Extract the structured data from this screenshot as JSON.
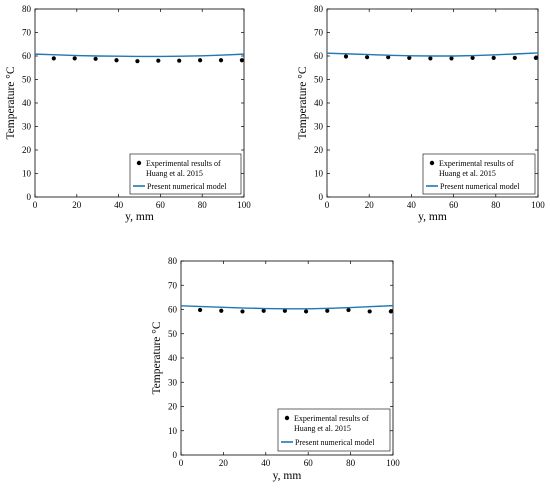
{
  "colors": {
    "model_line": "#1f77b4",
    "experimental_marker": "#000000",
    "axes": "#000000",
    "background": "#ffffff"
  },
  "chart_data": [
    {
      "type": "scatter",
      "xlabel": "y, mm",
      "ylabel": "Temperature °C",
      "xlim": [
        0,
        100
      ],
      "ylim": [
        0,
        80
      ],
      "xticks": [
        0,
        20,
        40,
        60,
        80,
        100
      ],
      "yticks": [
        0,
        10,
        20,
        30,
        40,
        50,
        60,
        70,
        80
      ],
      "grid": false,
      "legend_position": "bottom-right",
      "series": [
        {
          "name": "Experimental results of Huang et al. 2015",
          "legend_lines": [
            "Experimental results of",
            "Huang et al. 2015"
          ],
          "kind": "marker",
          "x": [
            9,
            19,
            29,
            39,
            49,
            59,
            69,
            79,
            89,
            99
          ],
          "y": [
            59,
            59,
            58.8,
            58.2,
            57.8,
            58,
            58,
            58.2,
            58.2,
            58.2
          ]
        },
        {
          "name": "Present numerical model",
          "legend_lines": [
            "Present numerical model"
          ],
          "kind": "line",
          "x": [
            0,
            10,
            20,
            30,
            40,
            50,
            60,
            70,
            80,
            90,
            100
          ],
          "y": [
            60.8,
            60.5,
            60.2,
            60.0,
            59.9,
            59.8,
            59.8,
            59.9,
            60.1,
            60.4,
            60.8
          ]
        }
      ]
    },
    {
      "type": "scatter",
      "xlabel": "y, mm",
      "ylabel": "Temperature °C",
      "xlim": [
        0,
        100
      ],
      "ylim": [
        0,
        80
      ],
      "xticks": [
        0,
        20,
        40,
        60,
        80,
        100
      ],
      "yticks": [
        0,
        10,
        20,
        30,
        40,
        50,
        60,
        70,
        80
      ],
      "grid": false,
      "legend_position": "bottom-right",
      "series": [
        {
          "name": "Experimental results of Huang et al. 2015",
          "legend_lines": [
            "Experimental results of",
            "Huang et al. 2015"
          ],
          "kind": "marker",
          "x": [
            9,
            19,
            29,
            39,
            49,
            59,
            69,
            79,
            89,
            99
          ],
          "y": [
            59.8,
            59.5,
            59.5,
            59.2,
            59,
            59,
            59.2,
            59.2,
            59.2,
            59.2
          ]
        },
        {
          "name": "Present numerical model",
          "legend_lines": [
            "Present numerical model"
          ],
          "kind": "line",
          "x": [
            0,
            10,
            20,
            30,
            40,
            50,
            60,
            70,
            80,
            90,
            100
          ],
          "y": [
            61.2,
            60.9,
            60.6,
            60.3,
            60.1,
            60.0,
            60.0,
            60.2,
            60.5,
            60.9,
            61.3
          ]
        }
      ]
    },
    {
      "type": "scatter",
      "xlabel": "y, mm",
      "ylabel": "Temperature °C",
      "xlim": [
        0,
        100
      ],
      "ylim": [
        0,
        80
      ],
      "xticks": [
        0,
        20,
        40,
        60,
        80,
        100
      ],
      "yticks": [
        0,
        10,
        20,
        30,
        40,
        50,
        60,
        70,
        80
      ],
      "grid": false,
      "legend_position": "bottom-right",
      "series": [
        {
          "name": "Experimental results of Huang et al. 2015",
          "legend_lines": [
            "Experimental results of",
            "Huang et al. 2015"
          ],
          "kind": "marker",
          "x": [
            9,
            19,
            29,
            39,
            49,
            59,
            69,
            79,
            89,
            99
          ],
          "y": [
            59.8,
            59.5,
            59.2,
            59.5,
            59.5,
            59.2,
            59.5,
            59.8,
            59.2,
            59.2
          ]
        },
        {
          "name": "Present numerical model",
          "legend_lines": [
            "Present numerical model"
          ],
          "kind": "line",
          "x": [
            0,
            10,
            20,
            30,
            40,
            50,
            60,
            70,
            80,
            90,
            100
          ],
          "y": [
            61.5,
            61.2,
            60.9,
            60.6,
            60.4,
            60.3,
            60.3,
            60.5,
            60.8,
            61.2,
            61.6
          ]
        }
      ]
    }
  ]
}
